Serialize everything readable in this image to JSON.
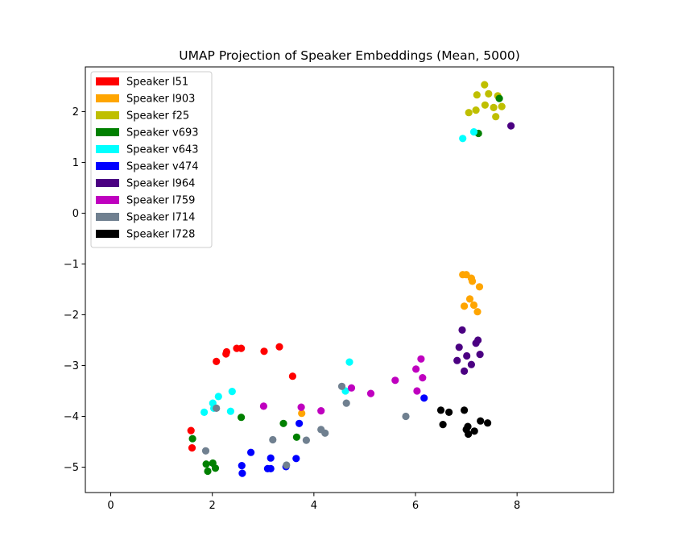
{
  "chart_data": {
    "type": "scatter",
    "title": "UMAP Projection of Speaker Embeddings (Mean, 5000)",
    "xlabel": "",
    "ylabel": "",
    "xlim": [
      -0.5,
      9.9
    ],
    "ylim": [
      -5.5,
      2.88
    ],
    "xticks": [
      0,
      2,
      4,
      6,
      8
    ],
    "yticks": [
      -5,
      -4,
      -3,
      -2,
      -1,
      0,
      1,
      2
    ],
    "grid": false,
    "legend_position": "upper-left",
    "series": [
      {
        "name": "Speaker l51",
        "color": "#ff0000",
        "points": [
          [
            1.58,
            -4.28
          ],
          [
            1.6,
            -4.62
          ],
          [
            2.08,
            -2.92
          ],
          [
            2.27,
            -2.77
          ],
          [
            2.28,
            -2.73
          ],
          [
            2.48,
            -2.66
          ],
          [
            2.57,
            -2.66
          ],
          [
            3.02,
            -2.72
          ],
          [
            3.32,
            -2.63
          ],
          [
            3.58,
            -3.21
          ]
        ]
      },
      {
        "name": "Speaker l903",
        "color": "#ffa500",
        "points": [
          [
            3.76,
            -3.94
          ],
          [
            6.93,
            -1.21
          ],
          [
            7.0,
            -1.21
          ],
          [
            7.1,
            -1.28
          ],
          [
            7.12,
            -1.34
          ],
          [
            7.26,
            -1.45
          ],
          [
            6.96,
            -1.83
          ],
          [
            7.07,
            -1.69
          ],
          [
            7.15,
            -1.81
          ],
          [
            7.22,
            -1.94
          ]
        ]
      },
      {
        "name": "Speaker f25",
        "color": "#bfbf00",
        "points": [
          [
            7.05,
            1.98
          ],
          [
            7.19,
            2.03
          ],
          [
            7.21,
            2.33
          ],
          [
            7.36,
            2.53
          ],
          [
            7.37,
            2.13
          ],
          [
            7.44,
            2.35
          ],
          [
            7.54,
            2.08
          ],
          [
            7.58,
            1.9
          ],
          [
            7.62,
            2.31
          ],
          [
            7.7,
            2.1
          ]
        ]
      },
      {
        "name": "Speaker v693",
        "color": "#008000",
        "points": [
          [
            1.61,
            -4.44
          ],
          [
            1.88,
            -4.94
          ],
          [
            1.91,
            -5.08
          ],
          [
            2.01,
            -4.92
          ],
          [
            2.06,
            -5.02
          ],
          [
            2.57,
            -4.02
          ],
          [
            3.4,
            -4.14
          ],
          [
            3.66,
            -4.41
          ],
          [
            7.24,
            1.57
          ],
          [
            7.65,
            2.26
          ]
        ]
      },
      {
        "name": "Speaker v643",
        "color": "#00ffff",
        "points": [
          [
            1.84,
            -3.92
          ],
          [
            2.01,
            -3.74
          ],
          [
            2.03,
            -3.84
          ],
          [
            2.12,
            -3.61
          ],
          [
            2.36,
            -3.9
          ],
          [
            2.39,
            -3.51
          ],
          [
            4.62,
            -3.5
          ],
          [
            4.7,
            -2.93
          ],
          [
            6.93,
            1.47
          ],
          [
            7.15,
            1.6
          ]
        ]
      },
      {
        "name": "Speaker v474",
        "color": "#0000ff",
        "points": [
          [
            2.58,
            -4.97
          ],
          [
            2.59,
            -5.12
          ],
          [
            2.76,
            -4.71
          ],
          [
            3.09,
            -5.03
          ],
          [
            3.15,
            -5.03
          ],
          [
            3.15,
            -4.82
          ],
          [
            3.45,
            -4.99
          ],
          [
            3.65,
            -4.83
          ],
          [
            3.71,
            -4.14
          ],
          [
            6.17,
            -3.64
          ]
        ]
      },
      {
        "name": "Speaker l964",
        "color": "#4b0082",
        "points": [
          [
            6.82,
            -2.9
          ],
          [
            6.86,
            -2.64
          ],
          [
            6.92,
            -2.3
          ],
          [
            6.96,
            -3.11
          ],
          [
            7.01,
            -2.81
          ],
          [
            7.1,
            -2.98
          ],
          [
            7.19,
            -2.56
          ],
          [
            7.23,
            -2.5
          ],
          [
            7.27,
            -2.78
          ],
          [
            7.88,
            1.72
          ]
        ]
      },
      {
        "name": "Speaker l759",
        "color": "#bf00bf",
        "points": [
          [
            3.01,
            -3.8
          ],
          [
            3.75,
            -3.82
          ],
          [
            4.14,
            -3.89
          ],
          [
            4.74,
            -3.44
          ],
          [
            5.12,
            -3.55
          ],
          [
            5.6,
            -3.29
          ],
          [
            6.01,
            -3.07
          ],
          [
            6.03,
            -3.5
          ],
          [
            6.11,
            -2.87
          ],
          [
            6.14,
            -3.24
          ]
        ]
      },
      {
        "name": "Speaker l714",
        "color": "#708090",
        "points": [
          [
            1.87,
            -4.68
          ],
          [
            2.08,
            -3.84
          ],
          [
            3.19,
            -4.46
          ],
          [
            3.46,
            -4.96
          ],
          [
            3.85,
            -4.47
          ],
          [
            4.14,
            -4.26
          ],
          [
            4.22,
            -4.33
          ],
          [
            4.55,
            -3.41
          ],
          [
            4.64,
            -3.74
          ],
          [
            5.81,
            -4.0
          ]
        ]
      },
      {
        "name": "Speaker l728",
        "color": "#000000",
        "points": [
          [
            6.5,
            -3.88
          ],
          [
            6.54,
            -4.16
          ],
          [
            6.66,
            -3.92
          ],
          [
            6.96,
            -3.88
          ],
          [
            7.0,
            -4.26
          ],
          [
            7.03,
            -4.2
          ],
          [
            7.04,
            -4.35
          ],
          [
            7.16,
            -4.29
          ],
          [
            7.28,
            -4.09
          ],
          [
            7.42,
            -4.13
          ]
        ]
      }
    ]
  }
}
